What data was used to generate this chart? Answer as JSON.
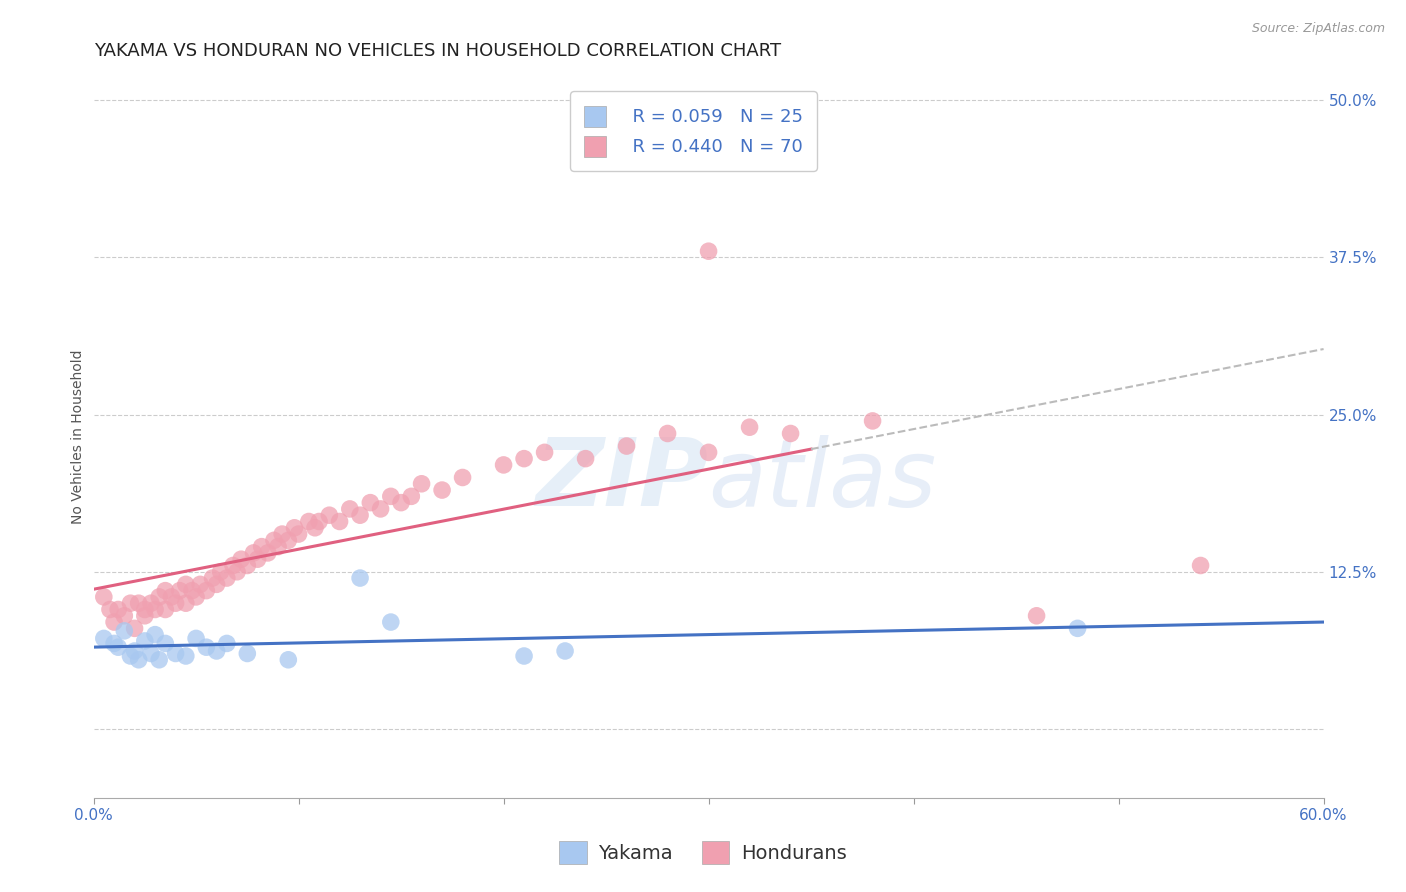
{
  "title": "YAKAMA VS HONDURAN NO VEHICLES IN HOUSEHOLD CORRELATION CHART",
  "source": "Source: ZipAtlas.com",
  "ylabel": "No Vehicles in Household",
  "xlabel": "",
  "x_min": 0.0,
  "x_max": 0.6,
  "y_min": -0.055,
  "y_max": 0.52,
  "x_ticks": [
    0.0,
    0.1,
    0.2,
    0.3,
    0.4,
    0.5,
    0.6
  ],
  "x_tick_labels": [
    "0.0%",
    "",
    "",
    "",
    "",
    "",
    "60.0%"
  ],
  "y_ticks": [
    0.0,
    0.125,
    0.25,
    0.375,
    0.5
  ],
  "y_tick_labels": [
    "",
    "12.5%",
    "25.0%",
    "37.5%",
    "50.0%"
  ],
  "yakama_R": 0.059,
  "yakama_N": 25,
  "honduran_R": 0.44,
  "honduran_N": 70,
  "yakama_color": "#a8c8f0",
  "honduran_color": "#f0a0b0",
  "yakama_line_color": "#4472c4",
  "honduran_line_color": "#e06080",
  "watermark_zip": "ZIP",
  "watermark_atlas": "atlas",
  "legend_label_yakama": "Yakama",
  "legend_label_honduran": "Hondurans",
  "yakama_x": [
    0.005,
    0.01,
    0.012,
    0.015,
    0.018,
    0.02,
    0.022,
    0.025,
    0.028,
    0.03,
    0.032,
    0.035,
    0.04,
    0.045,
    0.05,
    0.055,
    0.06,
    0.065,
    0.075,
    0.095,
    0.13,
    0.145,
    0.21,
    0.23,
    0.48
  ],
  "yakama_y": [
    0.072,
    0.068,
    0.065,
    0.078,
    0.058,
    0.062,
    0.055,
    0.07,
    0.06,
    0.075,
    0.055,
    0.068,
    0.06,
    0.058,
    0.072,
    0.065,
    0.062,
    0.068,
    0.06,
    0.055,
    0.12,
    0.085,
    0.058,
    0.062,
    0.08
  ],
  "honduran_x": [
    0.005,
    0.008,
    0.01,
    0.012,
    0.015,
    0.018,
    0.02,
    0.022,
    0.025,
    0.025,
    0.028,
    0.03,
    0.032,
    0.035,
    0.035,
    0.038,
    0.04,
    0.042,
    0.045,
    0.045,
    0.048,
    0.05,
    0.052,
    0.055,
    0.058,
    0.06,
    0.062,
    0.065,
    0.068,
    0.07,
    0.072,
    0.075,
    0.078,
    0.08,
    0.082,
    0.085,
    0.088,
    0.09,
    0.092,
    0.095,
    0.098,
    0.1,
    0.105,
    0.108,
    0.11,
    0.115,
    0.12,
    0.125,
    0.13,
    0.135,
    0.14,
    0.145,
    0.15,
    0.155,
    0.16,
    0.17,
    0.18,
    0.2,
    0.21,
    0.22,
    0.24,
    0.26,
    0.28,
    0.3,
    0.3,
    0.32,
    0.34,
    0.38,
    0.46,
    0.54
  ],
  "honduran_y": [
    0.105,
    0.095,
    0.085,
    0.095,
    0.09,
    0.1,
    0.08,
    0.1,
    0.09,
    0.095,
    0.1,
    0.095,
    0.105,
    0.095,
    0.11,
    0.105,
    0.1,
    0.11,
    0.1,
    0.115,
    0.11,
    0.105,
    0.115,
    0.11,
    0.12,
    0.115,
    0.125,
    0.12,
    0.13,
    0.125,
    0.135,
    0.13,
    0.14,
    0.135,
    0.145,
    0.14,
    0.15,
    0.145,
    0.155,
    0.15,
    0.16,
    0.155,
    0.165,
    0.16,
    0.165,
    0.17,
    0.165,
    0.175,
    0.17,
    0.18,
    0.175,
    0.185,
    0.18,
    0.185,
    0.195,
    0.19,
    0.2,
    0.21,
    0.215,
    0.22,
    0.215,
    0.225,
    0.235,
    0.22,
    0.38,
    0.24,
    0.235,
    0.245,
    0.09,
    0.13
  ],
  "background_color": "#ffffff",
  "grid_color": "#cccccc",
  "title_fontsize": 13,
  "axis_label_fontsize": 10,
  "tick_fontsize": 11,
  "legend_fontsize": 13
}
